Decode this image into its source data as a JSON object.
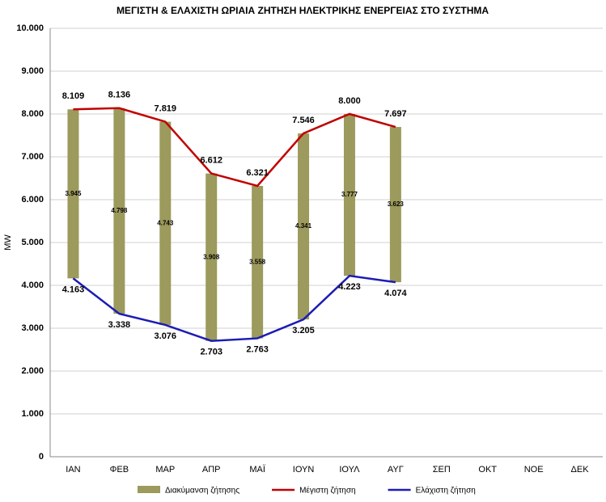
{
  "chart_data": {
    "type": "bar",
    "title": "ΜΕΓΙΣΤΗ & ΕΛΑΧΙΣΤΗ ΩΡΙΑΙΑ ΖΗΤΗΣΗ ΗΛΕΚΤΡΙΚΗΣ ΕΝΕΡΓΕΙΑΣ ΣΤΟ ΣΥΣΤΗΜΑ",
    "y_label": "MW",
    "categories": [
      "ΙΑΝ",
      "ΦΕΒ",
      "ΜΑΡ",
      "ΑΠΡ",
      "ΜΑΪ",
      "ΙΟΥΝ",
      "ΙΟΥΛ",
      "ΑΥΓ",
      "ΣΕΠ",
      "ΟΚΤ",
      "ΝΟΕ",
      "ΔΕΚ"
    ],
    "series": [
      {
        "name": "Διακύμανση ζήτησης",
        "type": "bar",
        "color": "#9c9a5c",
        "values": [
          3945,
          4798,
          4743,
          3908,
          3558,
          4341,
          3777,
          3623,
          null,
          null,
          null,
          null
        ],
        "value_labels": [
          "3.945",
          "4.798",
          "4.743",
          "3.908",
          "3.558",
          "4.341",
          "3.777",
          "3.623",
          null,
          null,
          null,
          null
        ]
      },
      {
        "name": "Μέγιστη ζήτηση",
        "type": "line",
        "color": "#c00000",
        "values": [
          8109,
          8136,
          7819,
          6612,
          6321,
          7546,
          8000,
          7697,
          null,
          null,
          null,
          null
        ],
        "value_labels": [
          "8.109",
          "8.136",
          "7.819",
          "6.612",
          "6.321",
          "7.546",
          "8.000",
          "7.697",
          null,
          null,
          null,
          null
        ]
      },
      {
        "name": "Ελάχιστη ζήτηση",
        "type": "line",
        "color": "#1c1cb4",
        "values": [
          4163,
          3338,
          3076,
          2703,
          2763,
          3205,
          4223,
          4074,
          null,
          null,
          null,
          null
        ],
        "value_labels": [
          "4.163",
          "3.338",
          "3.076",
          "2.703",
          "2.763",
          "3.205",
          "4.223",
          "4.074",
          null,
          null,
          null,
          null
        ]
      }
    ],
    "ylim": [
      0,
      10000
    ],
    "yticks": [
      0,
      {
        "value": 1000,
        "label": "1.000"
      },
      {
        "value": 2000,
        "label": "2.000"
      },
      {
        "value": 3000,
        "label": "3.000"
      },
      {
        "value": 4000,
        "label": "4.000"
      },
      {
        "value": 5000,
        "label": "5.000"
      },
      {
        "value": 6000,
        "label": "6.000"
      },
      {
        "value": 7000,
        "label": "7.000"
      },
      {
        "value": 8000,
        "label": "8.000"
      },
      {
        "value": 9000,
        "label": "9.000"
      },
      {
        "value": 10000,
        "label": "10.000"
      }
    ],
    "grid": true,
    "legend": "bottom"
  }
}
